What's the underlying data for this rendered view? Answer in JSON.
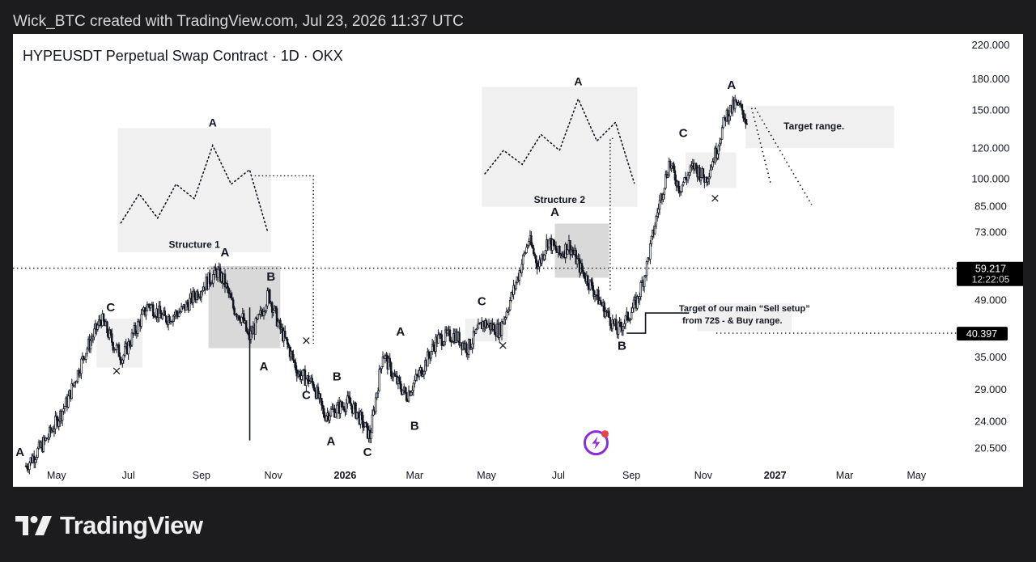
{
  "header": {
    "caption": "Wick_BTC created with TradingView.com, Jul 23, 2026 11:37 UTC"
  },
  "footer": {
    "brand": "TradingView",
    "logo_icon": "tradingview-logo-icon"
  },
  "colors": {
    "candle": "#131722",
    "box_light": "#f0f0f0",
    "box_dark": "#d9d9d9",
    "price_badge": "#000000",
    "lightning_ring": "#8a2be2",
    "lightning_dot": "#e84545"
  },
  "chart_data": {
    "type": "candlestick",
    "title": "HYPEUSDT Perpetual Swap Contract · 1D · OKX",
    "scale": "log",
    "ylim": [
      18,
      235
    ],
    "xlim": [
      "2025-03-25",
      "2027-05-31"
    ],
    "y_ticks": [
      "220.000",
      "180.000",
      "150.000",
      "120.000",
      "100.000",
      "85.000",
      "73.000",
      "49.000",
      "35.000",
      "29.000",
      "24.000",
      "20.500"
    ],
    "y_tick_values": [
      220,
      180,
      150,
      120,
      100,
      85,
      73,
      49,
      35,
      29,
      24,
      20.5
    ],
    "x_ticks": [
      {
        "label": "May",
        "date": "2025-05-01",
        "bold": false
      },
      {
        "label": "Jul",
        "date": "2025-07-01",
        "bold": false
      },
      {
        "label": "Sep",
        "date": "2025-09-01",
        "bold": false
      },
      {
        "label": "Nov",
        "date": "2025-11-01",
        "bold": false
      },
      {
        "label": "2026",
        "date": "2026-01-01",
        "bold": true
      },
      {
        "label": "Mar",
        "date": "2026-03-01",
        "bold": false
      },
      {
        "label": "May",
        "date": "2026-05-01",
        "bold": false
      },
      {
        "label": "Jul",
        "date": "2026-07-01",
        "bold": false
      },
      {
        "label": "Sep",
        "date": "2026-09-01",
        "bold": false
      },
      {
        "label": "Nov",
        "date": "2026-11-01",
        "bold": false
      },
      {
        "label": "2027",
        "date": "2027-01-01",
        "bold": true
      },
      {
        "label": "Mar",
        "date": "2027-03-01",
        "bold": false
      },
      {
        "label": "May",
        "date": "2027-05-01",
        "bold": false
      }
    ],
    "price_path": [
      [
        "2025-04-05",
        18.5
      ],
      [
        "2025-04-22",
        21.5
      ],
      [
        "2025-05-10",
        27
      ],
      [
        "2025-05-25",
        36
      ],
      [
        "2025-06-08",
        44
      ],
      [
        "2025-06-18",
        38
      ],
      [
        "2025-06-26",
        35
      ],
      [
        "2025-07-05",
        40
      ],
      [
        "2025-07-18",
        48
      ],
      [
        "2025-08-01",
        44
      ],
      [
        "2025-08-15",
        46
      ],
      [
        "2025-08-30",
        52
      ],
      [
        "2025-09-14",
        58
      ],
      [
        "2025-09-20",
        55
      ],
      [
        "2025-09-28",
        47
      ],
      [
        "2025-10-06",
        44
      ],
      [
        "2025-10-11",
        39
      ],
      [
        "2025-10-20",
        44
      ],
      [
        "2025-10-28",
        51
      ],
      [
        "2025-11-06",
        42
      ],
      [
        "2025-11-14",
        37
      ],
      [
        "2025-11-22",
        32
      ],
      [
        "2025-12-05",
        30
      ],
      [
        "2025-12-14",
        25
      ],
      [
        "2025-12-26",
        26
      ],
      [
        "2026-01-04",
        27
      ],
      [
        "2026-01-12",
        25
      ],
      [
        "2026-01-22",
        22
      ],
      [
        "2026-02-02",
        36
      ],
      [
        "2026-02-12",
        31
      ],
      [
        "2026-02-22",
        28
      ],
      [
        "2026-03-08",
        33
      ],
      [
        "2026-03-20",
        39
      ],
      [
        "2026-04-04",
        40
      ],
      [
        "2026-04-15",
        37
      ],
      [
        "2026-04-28",
        43
      ],
      [
        "2026-05-12",
        41
      ],
      [
        "2026-05-24",
        52
      ],
      [
        "2026-06-06",
        70
      ],
      [
        "2026-06-14",
        60
      ],
      [
        "2026-06-22",
        70
      ],
      [
        "2026-07-02",
        64
      ],
      [
        "2026-07-10",
        68
      ],
      [
        "2026-07-20",
        59
      ],
      [
        "2026-07-28",
        54
      ],
      [
        "2026-08-08",
        47
      ],
      [
        "2026-08-20",
        41
      ],
      [
        "2026-08-28",
        44
      ],
      [
        "2026-09-06",
        49
      ],
      [
        "2026-09-14",
        60
      ],
      [
        "2026-09-24",
        85
      ],
      [
        "2026-10-03",
        110
      ],
      [
        "2026-10-12",
        95
      ],
      [
        "2026-10-24",
        108
      ],
      [
        "2026-11-03",
        100
      ],
      [
        "2026-11-12",
        118
      ],
      [
        "2026-11-20",
        145
      ],
      [
        "2026-11-28",
        155
      ],
      [
        "2026-12-04",
        150
      ],
      [
        "2026-12-08",
        140
      ]
    ],
    "wicks": [
      {
        "date": "2025-10-12",
        "low": 21.5,
        "high": 47
      }
    ],
    "current_price": {
      "value": 59.217,
      "label": "59.217",
      "countdown": "12:22:05"
    },
    "support_price": {
      "value": 40.397,
      "label": "40.397"
    },
    "wave_labels": [
      {
        "text": "A",
        "date": "2025-03-31",
        "price": 19.6
      },
      {
        "text": "C",
        "date": "2025-06-16",
        "price": 46
      },
      {
        "text": "A",
        "date": "2025-09-21",
        "price": 63.5
      },
      {
        "text": "B",
        "date": "2025-10-30",
        "price": 55
      },
      {
        "text": "A",
        "date": "2025-10-24",
        "price": 32.5
      },
      {
        "text": "C",
        "date": "2025-11-29",
        "price": 27.4
      },
      {
        "text": "B",
        "date": "2025-12-25",
        "price": 30.6
      },
      {
        "text": "A",
        "date": "2025-12-20",
        "price": 20.9
      },
      {
        "text": "A",
        "date": "2026-02-17",
        "price": 39.8
      },
      {
        "text": "C",
        "date": "2026-01-20",
        "price": 19.6
      },
      {
        "text": "B",
        "date": "2026-03-01",
        "price": 22.9
      },
      {
        "text": "C",
        "date": "2026-04-27",
        "price": 47.6
      },
      {
        "text": "A",
        "date": "2026-06-28",
        "price": 80.5
      },
      {
        "text": "B",
        "date": "2026-08-24",
        "price": 36.7
      },
      {
        "text": "C",
        "date": "2026-10-15",
        "price": 128
      },
      {
        "text": "A",
        "date": "2026-11-25",
        "price": 170
      }
    ],
    "boxes": [
      {
        "x0": "2025-06-04",
        "x1": "2025-07-13",
        "y0": 44,
        "y1": 33,
        "tone": "light"
      },
      {
        "x0": "2025-09-07",
        "x1": "2025-11-07",
        "y0": 60,
        "y1": 37,
        "tone": "dark"
      },
      {
        "x0": "2026-04-13",
        "x1": "2026-05-19",
        "y0": 44,
        "y1": 38.5,
        "tone": "light"
      },
      {
        "x0": "2026-06-28",
        "x1": "2026-08-13",
        "y0": 77,
        "y1": 56,
        "tone": "dark"
      },
      {
        "x0": "2026-10-17",
        "x1": "2026-11-29",
        "y0": 117,
        "y1": 95,
        "tone": "light"
      },
      {
        "x0": "2026-12-07",
        "x1": "2027-04-12",
        "y0": 154,
        "y1": 120,
        "tone": "light"
      }
    ],
    "x_marks": [
      {
        "date": "2025-06-21",
        "price": 32.4
      },
      {
        "date": "2025-11-29",
        "price": 38.7
      },
      {
        "date": "2026-05-15",
        "price": 37.6
      },
      {
        "date": "2026-11-11",
        "price": 89.5
      }
    ],
    "structures": [
      {
        "label": "Structure 1",
        "peak_label": "A",
        "x0": "2025-06-22",
        "x1": "2025-10-30",
        "y0": 135,
        "y1": 65,
        "pattern": [
          0.15,
          0.45,
          0.2,
          0.55,
          0.4,
          0.95,
          0.55,
          0.7,
          0.05
        ],
        "label_price": 66.8,
        "peak_price": 135
      },
      {
        "label": "Structure 2",
        "peak_label": "A",
        "x0": "2026-04-27",
        "x1": "2026-09-06",
        "y0": 172,
        "y1": 85,
        "pattern": [
          0.2,
          0.45,
          0.3,
          0.62,
          0.45,
          1.0,
          0.55,
          0.75,
          0.1
        ],
        "label_price": 87,
        "peak_price": 172
      }
    ],
    "annotations": [
      {
        "text": "Target range.",
        "date": "2027-02-03",
        "price": 134
      },
      {
        "text": "Target of our main  “Sell setup”",
        "date": "2026-11-29",
        "price": 46
      },
      {
        "text": "from 72$ - & Buy range.",
        "date": "2026-11-29",
        "price": 42.8
      }
    ]
  }
}
